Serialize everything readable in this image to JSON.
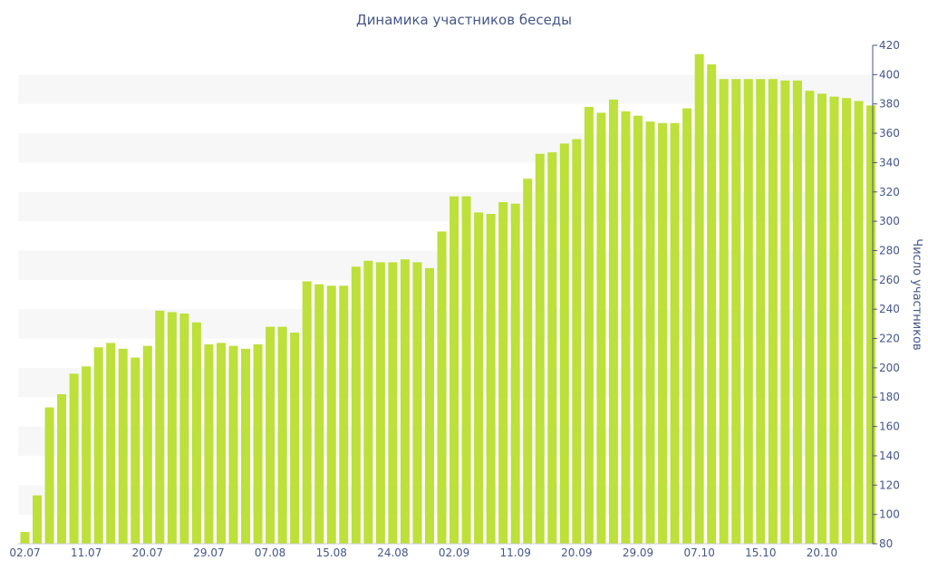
{
  "chart_data": {
    "type": "bar",
    "title": "Динамика участников беседы",
    "xlabel": "",
    "ylabel": "Число участников",
    "ylim": [
      80,
      420
    ],
    "ytick_step": 20,
    "y_axis_position": "right",
    "grid": "alternating horizontal bands",
    "legend": "none",
    "bar_color": "#bde03a",
    "text_color": "#45568a",
    "band_color": "#f7f7f7",
    "x_tick_labels": [
      {
        "label": "02.07",
        "index": 0
      },
      {
        "label": "11.07",
        "index": 5
      },
      {
        "label": "20.07",
        "index": 10
      },
      {
        "label": "29.07",
        "index": 15
      },
      {
        "label": "07.08",
        "index": 20
      },
      {
        "label": "15.08",
        "index": 25
      },
      {
        "label": "24.08",
        "index": 30
      },
      {
        "label": "02.09",
        "index": 35
      },
      {
        "label": "11.09",
        "index": 40
      },
      {
        "label": "20.09",
        "index": 45
      },
      {
        "label": "29.09",
        "index": 50
      },
      {
        "label": "07.10",
        "index": 55
      },
      {
        "label": "15.10",
        "index": 60
      },
      {
        "label": "20.10",
        "index": 65
      }
    ],
    "values": [
      88,
      113,
      173,
      182,
      196,
      201,
      214,
      217,
      213,
      207,
      215,
      239,
      238,
      237,
      231,
      216,
      217,
      215,
      213,
      216,
      228,
      228,
      224,
      259,
      257,
      256,
      256,
      269,
      273,
      272,
      272,
      274,
      272,
      268,
      293,
      317,
      317,
      306,
      305,
      313,
      312,
      329,
      346,
      347,
      353,
      356,
      378,
      374,
      383,
      375,
      372,
      368,
      367,
      367,
      377,
      414,
      407,
      397,
      397,
      397,
      397,
      397,
      396,
      396,
      389,
      387,
      385,
      384,
      382,
      379
    ]
  }
}
